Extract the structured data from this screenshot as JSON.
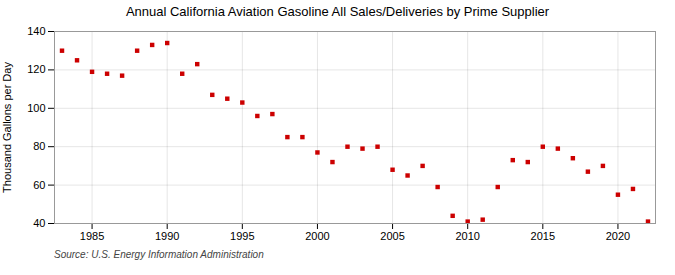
{
  "chart_data": {
    "type": "scatter",
    "title": "Annual California Aviation Gasoline All Sales/Deliveries by Prime Supplier",
    "ylabel": "Thousand Gallons per Day",
    "source": "Source: U.S. Energy Information Administration",
    "x": [
      1983,
      1984,
      1985,
      1986,
      1987,
      1988,
      1989,
      1990,
      1991,
      1992,
      1993,
      1994,
      1995,
      1996,
      1997,
      1998,
      1999,
      2000,
      2001,
      2002,
      2003,
      2004,
      2005,
      2006,
      2007,
      2008,
      2009,
      2010,
      2011,
      2012,
      2013,
      2014,
      2015,
      2016,
      2017,
      2018,
      2019,
      2020,
      2021,
      2022
    ],
    "values": [
      130,
      125,
      119,
      118,
      117,
      130,
      133,
      134,
      118,
      123,
      107,
      105,
      103,
      96,
      97,
      85,
      85,
      77,
      72,
      80,
      79,
      80,
      68,
      65,
      70,
      59,
      44,
      41,
      42,
      59,
      73,
      72,
      80,
      79,
      74,
      67,
      70,
      55,
      58,
      41
    ],
    "color": "#cc0000",
    "marker": "square",
    "xlim": [
      1982.5,
      2022.5
    ],
    "xticks": [
      1985,
      1990,
      1995,
      2000,
      2005,
      2010,
      2015,
      2020
    ],
    "ylim": [
      40,
      140
    ],
    "yticks": [
      40,
      60,
      80,
      100,
      120,
      140
    ],
    "grid": true
  }
}
